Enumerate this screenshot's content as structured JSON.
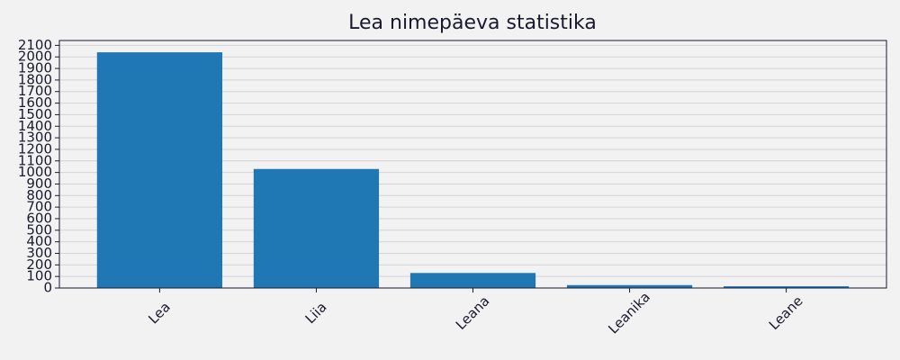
{
  "chart_data": {
    "type": "bar",
    "title": "Lea nimepäeva statistika",
    "categories": [
      "Lea",
      "Liia",
      "Leana",
      "Leanika",
      "Leane"
    ],
    "values": [
      2040,
      1030,
      130,
      25,
      15
    ],
    "color": "#1f77b4",
    "ylim": [
      0,
      2142
    ],
    "yticks": [
      0,
      100,
      200,
      300,
      400,
      500,
      600,
      700,
      800,
      900,
      1000,
      1100,
      1200,
      1300,
      1400,
      1500,
      1600,
      1700,
      1800,
      1900,
      2000,
      2100
    ],
    "grid": true
  }
}
